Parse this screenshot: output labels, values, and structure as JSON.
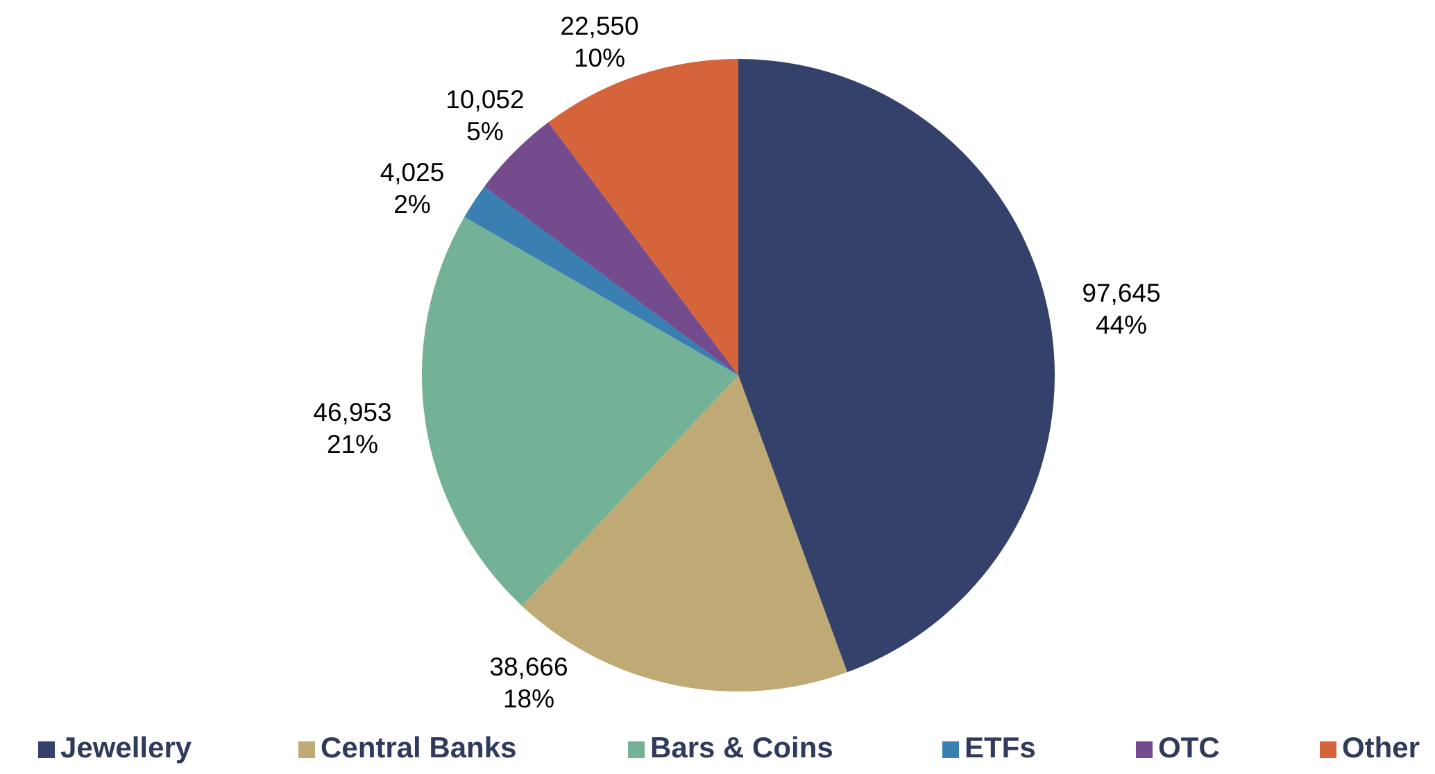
{
  "chart_data": {
    "type": "pie",
    "categories": [
      "Jewellery",
      "Central Banks",
      "Bars & Coins",
      "ETFs",
      "OTC",
      "Other"
    ],
    "values": [
      97645,
      38666,
      46953,
      4025,
      10052,
      22550
    ],
    "value_labels": [
      "97,645",
      "38,666",
      "46,953",
      "4,025",
      "10,052",
      "22,550"
    ],
    "percent_labels": [
      "44%",
      "18%",
      "21%",
      "2%",
      "5%",
      "10%"
    ],
    "colors": [
      "#34416a",
      "#bfaa75",
      "#73b297",
      "#3a7fb2",
      "#744b8c",
      "#d6643a"
    ],
    "legend": "bottom"
  }
}
